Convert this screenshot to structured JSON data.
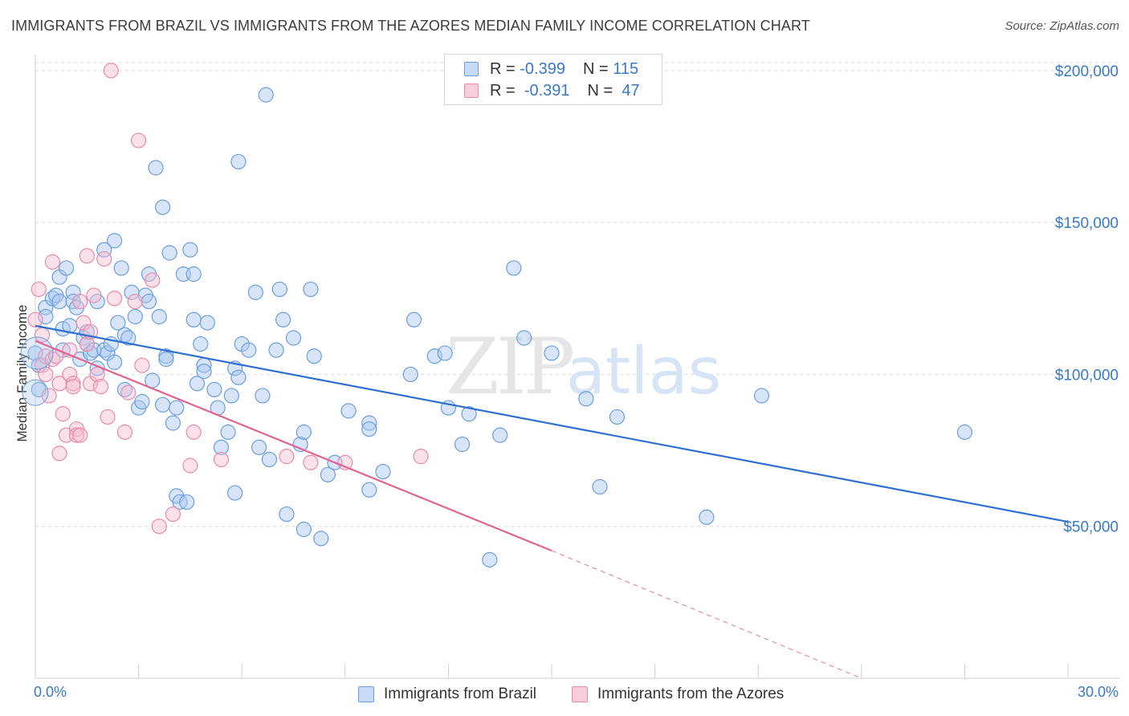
{
  "header": {
    "title": "IMMIGRANTS FROM BRAZIL VS IMMIGRANTS FROM THE AZORES MEDIAN FAMILY INCOME CORRELATION CHART",
    "source": "Source: ZipAtlas.com"
  },
  "stats_legend": {
    "rows": [
      {
        "r_label": "R =",
        "r_value": "-0.399",
        "n_label": "N =",
        "n_value": "115"
      },
      {
        "r_label": "R =",
        "r_value": "-0.391",
        "n_label": "N =",
        "n_value": "47"
      }
    ]
  },
  "watermark": {
    "part1": "ZIP",
    "part2": "atlas"
  },
  "chart_data": {
    "type": "scatter",
    "ylabel": "Median Family Income",
    "x_tick_labels": {
      "min": "0.0%",
      "max": "30.0%"
    },
    "xlim": [
      0,
      30
    ],
    "ylim": [
      0,
      210000
    ],
    "y_ticks": [
      {
        "value": 50000,
        "label": "$50,000"
      },
      {
        "value": 100000,
        "label": "$100,000"
      },
      {
        "value": 150000,
        "label": "$150,000"
      },
      {
        "value": 200000,
        "label": "$200,000"
      }
    ],
    "grid": true,
    "legend_position": "bottom-center",
    "series": [
      {
        "name": "Immigrants from Brazil",
        "color": "#6a9ee0",
        "fill": "#a9c6ef",
        "trend": {
          "x0": 0,
          "y0": 116000,
          "x1": 30,
          "y1": 51500
        },
        "points": [
          [
            0.0,
            107.0
          ],
          [
            0.1,
            103.0
          ],
          [
            0.1,
            95.0
          ],
          [
            0.3,
            122.0
          ],
          [
            0.3,
            119.0
          ],
          [
            0.5,
            125.0
          ],
          [
            0.6,
            126.0
          ],
          [
            0.7,
            132.0
          ],
          [
            0.7,
            124.0
          ],
          [
            0.8,
            115.0
          ],
          [
            0.8,
            108.0
          ],
          [
            0.9,
            135.0
          ],
          [
            1.0,
            116.0
          ],
          [
            1.1,
            127.0
          ],
          [
            1.1,
            124.0
          ],
          [
            1.2,
            122.0
          ],
          [
            1.3,
            105.0
          ],
          [
            1.4,
            112.0
          ],
          [
            1.5,
            114.0
          ],
          [
            1.5,
            110.0
          ],
          [
            1.6,
            107.0
          ],
          [
            1.7,
            108.0
          ],
          [
            1.8,
            124.0
          ],
          [
            1.8,
            102.0
          ],
          [
            2.0,
            108.0
          ],
          [
            2.0,
            141.0
          ],
          [
            2.1,
            107.0
          ],
          [
            2.2,
            110.0
          ],
          [
            2.3,
            104.0
          ],
          [
            2.3,
            144.0
          ],
          [
            2.4,
            117.0
          ],
          [
            2.5,
            135.0
          ],
          [
            2.6,
            95.0
          ],
          [
            2.6,
            113.0
          ],
          [
            2.7,
            112.0
          ],
          [
            2.8,
            127.0
          ],
          [
            2.9,
            119.0
          ],
          [
            3.0,
            89.0
          ],
          [
            3.1,
            91.0
          ],
          [
            3.2,
            126.0
          ],
          [
            3.3,
            124.0
          ],
          [
            3.3,
            133.0
          ],
          [
            3.4,
            98.0
          ],
          [
            3.5,
            168.0
          ],
          [
            3.6,
            119.0
          ],
          [
            3.7,
            90.0
          ],
          [
            3.7,
            155.0
          ],
          [
            3.8,
            106.0
          ],
          [
            3.8,
            105.0
          ],
          [
            3.9,
            140.0
          ],
          [
            4.0,
            84.0
          ],
          [
            4.1,
            89.0
          ],
          [
            4.1,
            60.0
          ],
          [
            4.2,
            58.0
          ],
          [
            4.3,
            133.0
          ],
          [
            4.4,
            58.0
          ],
          [
            4.5,
            141.0
          ],
          [
            4.6,
            118.0
          ],
          [
            4.6,
            133.0
          ],
          [
            4.7,
            97.0
          ],
          [
            4.8,
            110.0
          ],
          [
            4.9,
            103.0
          ],
          [
            4.9,
            101.0
          ],
          [
            5.0,
            117.0
          ],
          [
            5.2,
            95.0
          ],
          [
            5.3,
            89.0
          ],
          [
            5.4,
            76.0
          ],
          [
            5.6,
            81.0
          ],
          [
            5.7,
            93.0
          ],
          [
            5.8,
            102.0
          ],
          [
            5.8,
            61.0
          ],
          [
            5.9,
            99.0
          ],
          [
            5.9,
            170.0
          ],
          [
            6.0,
            110.0
          ],
          [
            6.2,
            108.0
          ],
          [
            6.4,
            127.0
          ],
          [
            6.5,
            76.0
          ],
          [
            6.6,
            93.0
          ],
          [
            6.7,
            192.0
          ],
          [
            6.8,
            72.0
          ],
          [
            7.0,
            108.0
          ],
          [
            7.1,
            128.0
          ],
          [
            7.2,
            118.0
          ],
          [
            7.3,
            54.0
          ],
          [
            7.5,
            112.0
          ],
          [
            7.7,
            77.0
          ],
          [
            7.8,
            81.0
          ],
          [
            7.8,
            49.0
          ],
          [
            8.0,
            128.0
          ],
          [
            8.1,
            106.0
          ],
          [
            8.3,
            46.0
          ],
          [
            8.5,
            67.0
          ],
          [
            8.7,
            71.0
          ],
          [
            9.1,
            88.0
          ],
          [
            9.7,
            84.0
          ],
          [
            9.7,
            82.0
          ],
          [
            9.7,
            62.0
          ],
          [
            10.1,
            68.0
          ],
          [
            10.9,
            100.0
          ],
          [
            11.0,
            118.0
          ],
          [
            11.6,
            106.0
          ],
          [
            11.9,
            107.0
          ],
          [
            12.0,
            89.0
          ],
          [
            12.4,
            77.0
          ],
          [
            12.6,
            87.0
          ],
          [
            13.2,
            39.0
          ],
          [
            13.5,
            80.0
          ],
          [
            13.9,
            135.0
          ],
          [
            14.2,
            112.0
          ],
          [
            15.0,
            107.0
          ],
          [
            16.0,
            92.0
          ],
          [
            16.4,
            63.0
          ],
          [
            16.9,
            86.0
          ],
          [
            19.5,
            53.0
          ],
          [
            21.1,
            93.0
          ],
          [
            27.0,
            81.0
          ]
        ]
      },
      {
        "name": "Immigrants from the Azores",
        "color": "#e88aaa",
        "fill": "#f4bdd0",
        "trend": {
          "x0": 0,
          "y0": 111000,
          "x1": 15,
          "y1": 42000
        },
        "trend_extension": {
          "x0": 15,
          "y0": 42000,
          "x1": 24,
          "y1": 0
        },
        "points": [
          [
            0.0,
            118.0
          ],
          [
            0.1,
            128.0
          ],
          [
            0.2,
            103.0
          ],
          [
            0.2,
            113.0
          ],
          [
            0.3,
            106.0
          ],
          [
            0.3,
            100.0
          ],
          [
            0.4,
            93.0
          ],
          [
            0.5,
            137.0
          ],
          [
            0.5,
            105.0
          ],
          [
            0.6,
            106.0
          ],
          [
            0.7,
            97.0
          ],
          [
            0.7,
            74.0
          ],
          [
            0.8,
            87.0
          ],
          [
            0.9,
            80.0
          ],
          [
            1.0,
            100.0
          ],
          [
            1.0,
            108.0
          ],
          [
            1.1,
            97.0
          ],
          [
            1.1,
            96.0
          ],
          [
            1.2,
            82.0
          ],
          [
            1.2,
            80.0
          ],
          [
            1.3,
            80.0
          ],
          [
            1.3,
            124.0
          ],
          [
            1.4,
            117.0
          ],
          [
            1.5,
            110.0
          ],
          [
            1.5,
            139.0
          ],
          [
            1.6,
            114.0
          ],
          [
            1.6,
            97.0
          ],
          [
            1.7,
            126.0
          ],
          [
            1.8,
            100.0
          ],
          [
            1.9,
            96.0
          ],
          [
            2.0,
            138.0
          ],
          [
            2.1,
            86.0
          ],
          [
            2.2,
            200.0
          ],
          [
            2.3,
            125.0
          ],
          [
            2.6,
            81.0
          ],
          [
            2.7,
            94.0
          ],
          [
            2.9,
            124.0
          ],
          [
            3.0,
            177.0
          ],
          [
            3.1,
            103.0
          ],
          [
            3.4,
            131.0
          ],
          [
            3.6,
            50.0
          ],
          [
            4.0,
            54.0
          ],
          [
            4.5,
            70.0
          ],
          [
            4.6,
            81.0
          ],
          [
            5.4,
            72.0
          ],
          [
            7.3,
            73.0
          ],
          [
            8.0,
            71.0
          ],
          [
            9.0,
            71.0
          ],
          [
            11.2,
            73.0
          ]
        ]
      }
    ]
  }
}
